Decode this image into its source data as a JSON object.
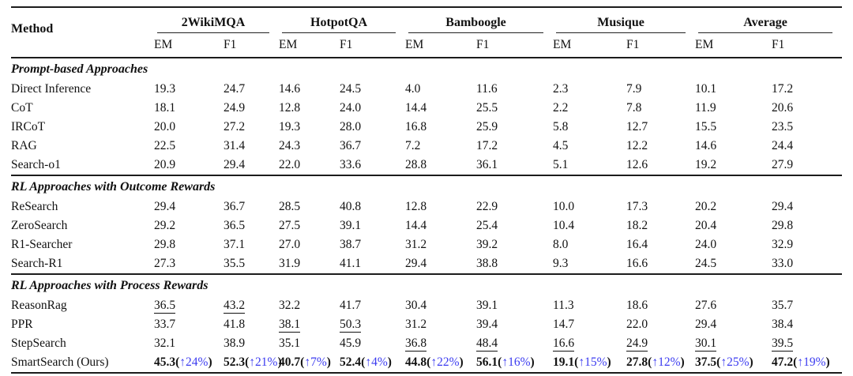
{
  "colors": {
    "accent_gain": "#3b3bf0",
    "text": "#111111",
    "rule": "#1c1c1c"
  },
  "table": {
    "method_header": "Method",
    "gain_arrow": "↑",
    "groups": [
      {
        "label": "2WikiMQA"
      },
      {
        "label": "HotpotQA"
      },
      {
        "label": "Bamboogle"
      },
      {
        "label": "Musique"
      },
      {
        "label": "Average"
      }
    ],
    "subheaders": [
      "EM",
      "F1"
    ],
    "sections": [
      {
        "title": "Prompt-based Approaches",
        "rows": [
          {
            "method": "Direct Inference",
            "bold": false,
            "cells": [
              {
                "v": "19.3"
              },
              {
                "v": "24.7"
              },
              {
                "v": "14.6"
              },
              {
                "v": "24.5"
              },
              {
                "v": "4.0"
              },
              {
                "v": "11.6"
              },
              {
                "v": "2.3"
              },
              {
                "v": "7.9"
              },
              {
                "v": "10.1"
              },
              {
                "v": "17.2"
              }
            ]
          },
          {
            "method": "CoT",
            "bold": false,
            "cells": [
              {
                "v": "18.1"
              },
              {
                "v": "24.9"
              },
              {
                "v": "12.8"
              },
              {
                "v": "24.0"
              },
              {
                "v": "14.4"
              },
              {
                "v": "25.5"
              },
              {
                "v": "2.2"
              },
              {
                "v": "7.8"
              },
              {
                "v": "11.9"
              },
              {
                "v": "20.6"
              }
            ]
          },
          {
            "method": "IRCoT",
            "bold": false,
            "cells": [
              {
                "v": "20.0"
              },
              {
                "v": "27.2"
              },
              {
                "v": "19.3"
              },
              {
                "v": "28.0"
              },
              {
                "v": "16.8"
              },
              {
                "v": "25.9"
              },
              {
                "v": "5.8"
              },
              {
                "v": "12.7"
              },
              {
                "v": "15.5"
              },
              {
                "v": "23.5"
              }
            ]
          },
          {
            "method": "RAG",
            "bold": false,
            "cells": [
              {
                "v": "22.5"
              },
              {
                "v": "31.4"
              },
              {
                "v": "24.3"
              },
              {
                "v": "36.7"
              },
              {
                "v": "7.2"
              },
              {
                "v": "17.2"
              },
              {
                "v": "4.5"
              },
              {
                "v": "12.2"
              },
              {
                "v": "14.6"
              },
              {
                "v": "24.4"
              }
            ]
          },
          {
            "method": "Search-o1",
            "bold": false,
            "cells": [
              {
                "v": "20.9"
              },
              {
                "v": "29.4"
              },
              {
                "v": "22.0"
              },
              {
                "v": "33.6"
              },
              {
                "v": "28.8"
              },
              {
                "v": "36.1"
              },
              {
                "v": "5.1"
              },
              {
                "v": "12.6"
              },
              {
                "v": "19.2"
              },
              {
                "v": "27.9"
              }
            ]
          }
        ]
      },
      {
        "title": "RL Approaches with Outcome Rewards",
        "rows": [
          {
            "method": "ReSearch",
            "bold": false,
            "cells": [
              {
                "v": "29.4"
              },
              {
                "v": "36.7"
              },
              {
                "v": "28.5"
              },
              {
                "v": "40.8"
              },
              {
                "v": "12.8"
              },
              {
                "v": "22.9"
              },
              {
                "v": "10.0"
              },
              {
                "v": "17.3"
              },
              {
                "v": "20.2"
              },
              {
                "v": "29.4"
              }
            ]
          },
          {
            "method": "ZeroSearch",
            "bold": false,
            "cells": [
              {
                "v": "29.2"
              },
              {
                "v": "36.5"
              },
              {
                "v": "27.5"
              },
              {
                "v": "39.1"
              },
              {
                "v": "14.4"
              },
              {
                "v": "25.4"
              },
              {
                "v": "10.4"
              },
              {
                "v": "18.2"
              },
              {
                "v": "20.4"
              },
              {
                "v": "29.8"
              }
            ]
          },
          {
            "method": "R1-Searcher",
            "bold": false,
            "cells": [
              {
                "v": "29.8"
              },
              {
                "v": "37.1"
              },
              {
                "v": "27.0"
              },
              {
                "v": "38.7"
              },
              {
                "v": "31.2"
              },
              {
                "v": "39.2"
              },
              {
                "v": "8.0"
              },
              {
                "v": "16.4"
              },
              {
                "v": "24.0"
              },
              {
                "v": "32.9"
              }
            ]
          },
          {
            "method": "Search-R1",
            "bold": false,
            "cells": [
              {
                "v": "27.3"
              },
              {
                "v": "35.5"
              },
              {
                "v": "31.9"
              },
              {
                "v": "41.1"
              },
              {
                "v": "29.4"
              },
              {
                "v": "38.8"
              },
              {
                "v": "9.3"
              },
              {
                "v": "16.6"
              },
              {
                "v": "24.5"
              },
              {
                "v": "33.0"
              }
            ]
          }
        ]
      },
      {
        "title": "RL Approaches with Process Rewards",
        "rows": [
          {
            "method": "ReasonRag",
            "bold": false,
            "cells": [
              {
                "v": "36.5",
                "u": true
              },
              {
                "v": "43.2",
                "u": true
              },
              {
                "v": "32.2"
              },
              {
                "v": "41.7"
              },
              {
                "v": "30.4"
              },
              {
                "v": "39.1"
              },
              {
                "v": "11.3"
              },
              {
                "v": "18.6"
              },
              {
                "v": "27.6"
              },
              {
                "v": "35.7"
              }
            ]
          },
          {
            "method": "PPR",
            "bold": false,
            "cells": [
              {
                "v": "33.7"
              },
              {
                "v": "41.8"
              },
              {
                "v": "38.1",
                "u": true
              },
              {
                "v": "50.3",
                "u": true
              },
              {
                "v": "31.2"
              },
              {
                "v": "39.4"
              },
              {
                "v": "14.7"
              },
              {
                "v": "22.0"
              },
              {
                "v": "29.4"
              },
              {
                "v": "38.4"
              }
            ]
          },
          {
            "method": "StepSearch",
            "bold": false,
            "cells": [
              {
                "v": "32.1"
              },
              {
                "v": "38.9"
              },
              {
                "v": "35.1"
              },
              {
                "v": "45.9"
              },
              {
                "v": "36.8",
                "u": true
              },
              {
                "v": "48.4",
                "u": true
              },
              {
                "v": "16.6",
                "u": true
              },
              {
                "v": "24.9",
                "u": true
              },
              {
                "v": "30.1",
                "u": true
              },
              {
                "v": "39.5",
                "u": true
              }
            ]
          },
          {
            "method": "SmartSearch (Ours)",
            "bold": true,
            "cells": [
              {
                "v": "45.3",
                "gain": "24%"
              },
              {
                "v": "52.3",
                "gain": "21%"
              },
              {
                "v": "40.7",
                "gain": "7%"
              },
              {
                "v": "52.4",
                "gain": "4%"
              },
              {
                "v": "44.8",
                "gain": "22%"
              },
              {
                "v": "56.1",
                "gain": "16%"
              },
              {
                "v": "19.1",
                "gain": "15%"
              },
              {
                "v": "27.8",
                "gain": "12%"
              },
              {
                "v": "37.5",
                "gain": "25%"
              },
              {
                "v": "47.2",
                "gain": "19%"
              }
            ]
          }
        ]
      }
    ]
  }
}
